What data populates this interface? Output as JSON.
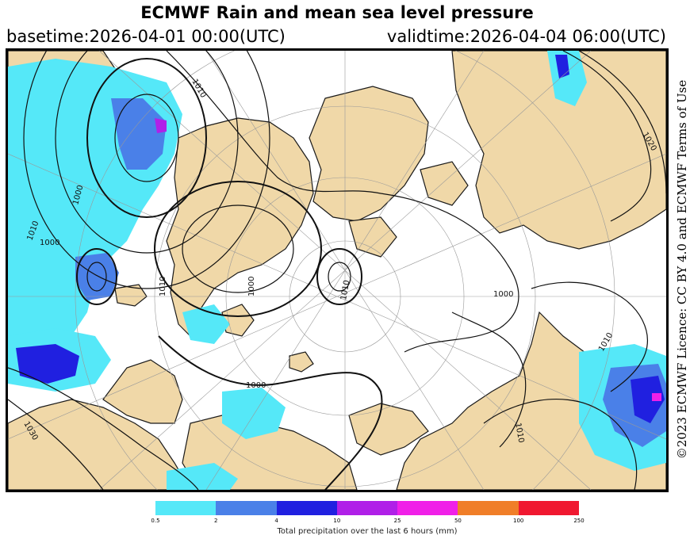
{
  "header": {
    "title": "ECMWF Rain and mean sea level pressure",
    "basetime": "basetime:2026-04-01 00:00(UTC)",
    "validtime": "validtime:2026-04-04 06:00(UTC)"
  },
  "credit": "©2023 ECMWF Licence: CC BY 4.0 and ECMWF Terms of Use",
  "map": {
    "projection": "north-polar-stereographic",
    "colors": {
      "land": "#f0d8a8",
      "ocean": "#ffffff",
      "isobar": "#111111",
      "grid": "#999999"
    },
    "isobar_labels": [
      "1010",
      "1010",
      "1000",
      "1010",
      "1000",
      "1010",
      "1020",
      "1000",
      "1010",
      "1010",
      "1030",
      "1000",
      "1000"
    ]
  },
  "legend": {
    "title": "Total precipitation over the last 6 hours (mm)",
    "ticks": [
      "0.5",
      "2",
      "4",
      "10",
      "25",
      "50",
      "100",
      "250"
    ],
    "colors": [
      "#55e8f8",
      "#4a80e8",
      "#2020e0",
      "#b020e8",
      "#f020e8",
      "#f07e28",
      "#f01830"
    ]
  }
}
